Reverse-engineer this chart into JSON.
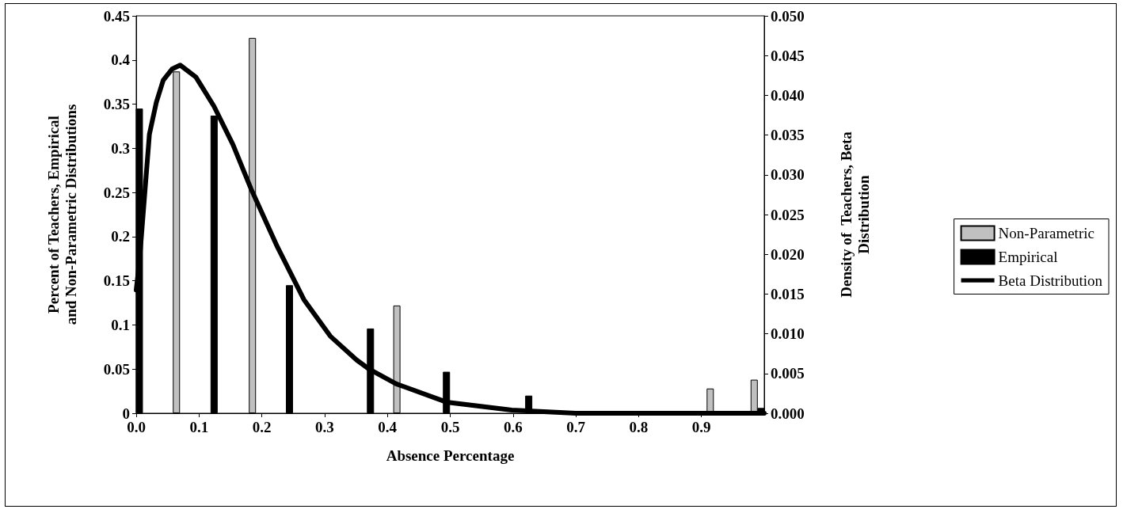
{
  "chart_data": {
    "type": "bar",
    "xlabel": "Absence Percentage",
    "ylabel": "Percent of Teachers, Empirical\nand Non-Parametric Distributions",
    "y2label": "Density of  Teachers, Beta\nDistribution",
    "xlim": [
      0,
      1
    ],
    "xticks": [
      {
        "value": 0,
        "label": "0.0"
      },
      {
        "value": 0.1,
        "label": "0.1"
      },
      {
        "value": 0.2,
        "label": "0.2"
      },
      {
        "value": 0.3,
        "label": "0.3"
      },
      {
        "value": 0.4,
        "label": "0.4"
      },
      {
        "value": 0.5,
        "label": "0.5"
      },
      {
        "value": 0.6,
        "label": "0.6"
      },
      {
        "value": 0.7,
        "label": "0.7"
      },
      {
        "value": 0.8,
        "label": "0.8"
      },
      {
        "value": 0.9,
        "label": "0.9"
      }
    ],
    "ylim": [
      0,
      0.45
    ],
    "yticks": [
      0,
      0.05,
      0.1,
      0.15,
      0.2,
      0.25,
      0.3,
      0.35,
      0.4,
      0.45
    ],
    "y2lim": [
      0,
      0.05
    ],
    "y2ticks": [
      {
        "value": 0,
        "label": "0.000"
      },
      {
        "value": 0.005,
        "label": "0.005"
      },
      {
        "value": 0.01,
        "label": "0.010"
      },
      {
        "value": 0.015,
        "label": "0.015"
      },
      {
        "value": 0.02,
        "label": "0.020"
      },
      {
        "value": 0.025,
        "label": "0.025"
      },
      {
        "value": 0.03,
        "label": "0.030"
      },
      {
        "value": 0.035,
        "label": "0.035"
      },
      {
        "value": 0.04,
        "label": "0.040"
      },
      {
        "value": 0.045,
        "label": "0.045"
      },
      {
        "value": 0.05,
        "label": "0.050"
      }
    ],
    "grid": false,
    "legend": "right",
    "marker": "none",
    "series": [
      {
        "name": "Non-Parametric",
        "color": "#c0c0c0",
        "x": [
          0.064,
          0.185,
          0.415,
          0.914,
          0.984
        ],
        "values": [
          0.387,
          0.425,
          0.122,
          0.028,
          0.038
        ]
      },
      {
        "name": "Empirical",
        "color": "#000000",
        "x": [
          0.005,
          0.124,
          0.244,
          0.373,
          0.494,
          0.625,
          0.995
        ],
        "values": [
          0.345,
          0.337,
          0.145,
          0.096,
          0.047,
          0.02,
          0.006
        ]
      },
      {
        "name": "Beta Distribution",
        "type": "line",
        "axis": "y2",
        "color": "#000000",
        "line_style": "solid",
        "x": [
          0,
          0.005,
          0.021,
          0.032,
          0.043,
          0.057,
          0.07,
          0.095,
          0.124,
          0.154,
          0.183,
          0.225,
          0.267,
          0.309,
          0.351,
          0.37,
          0.414,
          0.494,
          0.598,
          0.7,
          0.8,
          0.9,
          1.0
        ],
        "values": [
          0.0155,
          0.019,
          0.0351,
          0.0391,
          0.0419,
          0.0433,
          0.0438,
          0.0423,
          0.0386,
          0.0338,
          0.0282,
          0.0209,
          0.0143,
          0.0097,
          0.0067,
          0.0056,
          0.0037,
          0.0014,
          0.0004,
          0,
          0,
          0,
          0
        ]
      }
    ]
  }
}
